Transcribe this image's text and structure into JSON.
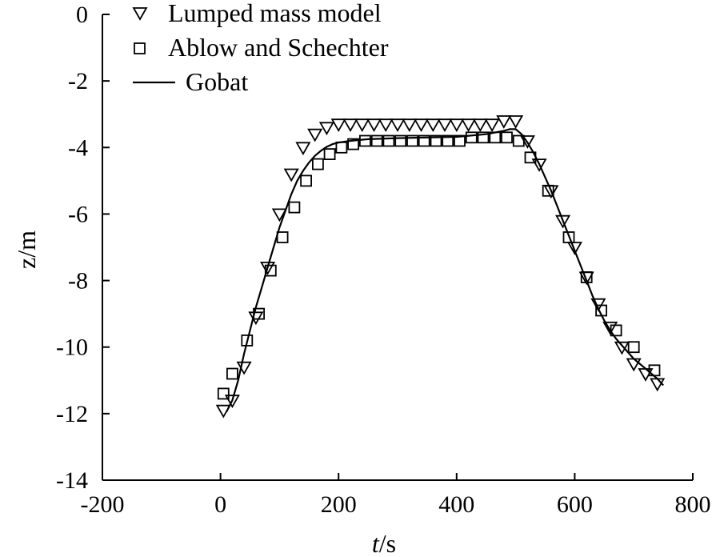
{
  "chart_data": {
    "type": "scatter",
    "xlabel": "t/s",
    "xlabel_italic": "t",
    "xlabel_unit": "/s",
    "ylabel": "z/m",
    "xlim": [
      -200,
      800
    ],
    "ylim": [
      -14,
      0
    ],
    "x_ticks": [
      -200,
      0,
      200,
      400,
      600,
      800
    ],
    "y_ticks": [
      0,
      -2,
      -4,
      -6,
      -8,
      -10,
      -12,
      -14
    ],
    "grid": false,
    "legend_position": "top-left",
    "series": [
      {
        "name": "Lumped mass model",
        "marker": "triangle-down",
        "x": [
          5,
          20,
          40,
          60,
          80,
          100,
          120,
          140,
          160,
          180,
          200,
          220,
          240,
          260,
          280,
          300,
          320,
          340,
          360,
          380,
          400,
          420,
          440,
          460,
          480,
          500,
          520,
          540,
          560,
          580,
          600,
          620,
          640,
          660,
          680,
          700,
          720,
          740
        ],
        "y": [
          -11.9,
          -11.6,
          -10.6,
          -9.1,
          -7.6,
          -6.0,
          -4.8,
          -4.0,
          -3.6,
          -3.4,
          -3.3,
          -3.3,
          -3.3,
          -3.3,
          -3.3,
          -3.3,
          -3.3,
          -3.3,
          -3.3,
          -3.3,
          -3.3,
          -3.3,
          -3.3,
          -3.3,
          -3.2,
          -3.2,
          -3.8,
          -4.5,
          -5.3,
          -6.2,
          -7.0,
          -7.9,
          -8.7,
          -9.4,
          -10.0,
          -10.5,
          -10.8,
          -11.1
        ]
      },
      {
        "name": "Ablow and Schechter",
        "marker": "square",
        "x": [
          5,
          20,
          45,
          65,
          85,
          105,
          125,
          145,
          165,
          185,
          205,
          225,
          245,
          265,
          285,
          305,
          325,
          345,
          365,
          385,
          405,
          425,
          445,
          465,
          485,
          505,
          525,
          555,
          590,
          620,
          645,
          670,
          700,
          735
        ],
        "y": [
          -11.4,
          -10.8,
          -9.8,
          -9.0,
          -7.7,
          -6.7,
          -5.8,
          -5.0,
          -4.5,
          -4.2,
          -4.0,
          -3.9,
          -3.8,
          -3.8,
          -3.8,
          -3.8,
          -3.8,
          -3.8,
          -3.8,
          -3.8,
          -3.8,
          -3.7,
          -3.7,
          -3.7,
          -3.7,
          -3.8,
          -4.3,
          -5.3,
          -6.7,
          -7.9,
          -8.9,
          -9.5,
          -10.0,
          -10.7
        ]
      },
      {
        "name": "Gobat",
        "marker": "line",
        "x": [
          10,
          20,
          30,
          40,
          50,
          60,
          70,
          80,
          90,
          100,
          110,
          120,
          130,
          140,
          150,
          160,
          170,
          180,
          190,
          200,
          220,
          250,
          300,
          350,
          400,
          450,
          480,
          490,
          500,
          510,
          520,
          530,
          540,
          550,
          560,
          570,
          580,
          590,
          600,
          610,
          620,
          630,
          640,
          650,
          660,
          670,
          680,
          690,
          700,
          710,
          720,
          730,
          740,
          750
        ],
        "y": [
          -11.95,
          -11.6,
          -11.0,
          -10.2,
          -9.5,
          -8.8,
          -8.2,
          -7.6,
          -7.0,
          -6.4,
          -5.9,
          -5.4,
          -5.0,
          -4.7,
          -4.45,
          -4.25,
          -4.1,
          -3.98,
          -3.9,
          -3.85,
          -3.8,
          -3.75,
          -3.72,
          -3.7,
          -3.68,
          -3.6,
          -3.5,
          -3.45,
          -3.45,
          -3.6,
          -3.85,
          -4.15,
          -4.5,
          -4.9,
          -5.3,
          -5.75,
          -6.2,
          -6.65,
          -7.1,
          -7.55,
          -8.0,
          -8.45,
          -8.85,
          -9.2,
          -9.5,
          -9.75,
          -9.95,
          -10.15,
          -10.35,
          -10.5,
          -10.65,
          -10.8,
          -10.95,
          -11.15
        ]
      }
    ]
  }
}
